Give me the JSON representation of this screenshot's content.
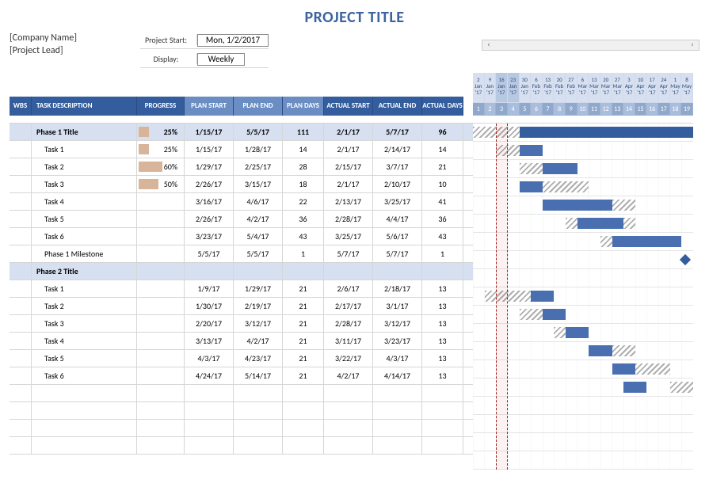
{
  "title": "PROJECT TITLE",
  "company": "[Company Name]",
  "lead": "[Project Lead]",
  "controls": {
    "start_label": "Project Start:",
    "start_value": "Mon, 1/2/2017",
    "display_label": "Display:",
    "display_value": "Weekly"
  },
  "columns": {
    "wbs": "WBS",
    "desc": "TASK DESCRIPTION",
    "prog": "PROGRESS",
    "ps": "PLAN START",
    "pe": "PLAN END",
    "pd": "PLAN DAYS",
    "as": "ACTUAL START",
    "ae": "ACTUAL END",
    "ad": "ACTUAL DAYS"
  },
  "timeline": {
    "dates": [
      {
        "d": "2",
        "m": "Jan",
        "y": "'17"
      },
      {
        "d": "9",
        "m": "Jan",
        "y": "'17"
      },
      {
        "d": "16",
        "m": "Jan",
        "y": "'17"
      },
      {
        "d": "23",
        "m": "Jan",
        "y": "'17"
      },
      {
        "d": "30",
        "m": "Jan",
        "y": "'17"
      },
      {
        "d": "6",
        "m": "Feb",
        "y": "'17"
      },
      {
        "d": "13",
        "m": "Feb",
        "y": "'17"
      },
      {
        "d": "20",
        "m": "Feb",
        "y": "'17"
      },
      {
        "d": "27",
        "m": "Feb",
        "y": "'17"
      },
      {
        "d": "6",
        "m": "Mar",
        "y": "'17"
      },
      {
        "d": "13",
        "m": "Mar",
        "y": "'17"
      },
      {
        "d": "20",
        "m": "Mar",
        "y": "'17"
      },
      {
        "d": "27",
        "m": "Mar",
        "y": "'17"
      },
      {
        "d": "3",
        "m": "Apr",
        "y": "'17"
      },
      {
        "d": "10",
        "m": "Apr",
        "y": "'17"
      },
      {
        "d": "17",
        "m": "Apr",
        "y": "'17"
      },
      {
        "d": "24",
        "m": "Apr",
        "y": "'17"
      },
      {
        "d": "1",
        "m": "May",
        "y": "'17"
      },
      {
        "d": "8",
        "m": "May",
        "y": "'17"
      }
    ],
    "weeks": [
      "1",
      "2",
      "3",
      "4",
      "5",
      "6",
      "7",
      "8",
      "9",
      "10",
      "11",
      "12",
      "13",
      "14",
      "15",
      "16",
      "17",
      "18",
      "19"
    ],
    "today_col": 3,
    "cell_w": 14.63,
    "colors": {
      "bar": "#4a6fb0",
      "phase_bar": "#345d9d"
    }
  },
  "rows": [
    {
      "type": "phase",
      "desc": "Phase 1 Title",
      "prog": 25,
      "ps": "1/15/17",
      "pe": "5/5/17",
      "pd": "111",
      "as": "2/1/17",
      "ae": "5/7/17",
      "ad": "96",
      "hatch": [
        0,
        4
      ],
      "bar": [
        4,
        19
      ],
      "dark": true
    },
    {
      "type": "task",
      "desc": "Task 1",
      "prog": 25,
      "ps": "1/15/17",
      "pe": "1/28/17",
      "pd": "14",
      "as": "2/1/17",
      "ae": "2/14/17",
      "ad": "14",
      "hatch": [
        2,
        4
      ],
      "bar": [
        4,
        6
      ]
    },
    {
      "type": "task",
      "desc": "Task 2",
      "prog": 60,
      "ps": "1/29/17",
      "pe": "2/25/17",
      "pd": "28",
      "as": "2/15/17",
      "ae": "3/7/17",
      "ad": "21",
      "hatch": [
        4,
        6
      ],
      "bar": [
        6,
        9
      ]
    },
    {
      "type": "task",
      "desc": "Task 3",
      "prog": 50,
      "ps": "2/26/17",
      "pe": "3/15/17",
      "pd": "18",
      "as": "2/1/17",
      "ae": "2/10/17",
      "ad": "10",
      "hatch": null,
      "bar": [
        4,
        6
      ],
      "posthatch": [
        6,
        10
      ]
    },
    {
      "type": "task",
      "desc": "Task 4",
      "prog": null,
      "ps": "3/16/17",
      "pe": "4/6/17",
      "pd": "22",
      "as": "2/13/17",
      "ae": "3/25/17",
      "ad": "41",
      "hatch": null,
      "bar": [
        6,
        12
      ],
      "posthatch": [
        12,
        14
      ]
    },
    {
      "type": "task",
      "desc": "Task 5",
      "prog": null,
      "ps": "2/26/17",
      "pe": "4/2/17",
      "pd": "36",
      "as": "2/28/17",
      "ae": "4/4/17",
      "ad": "36",
      "hatch": [
        8,
        9
      ],
      "bar": [
        9,
        13
      ],
      "posthatch": [
        13,
        14
      ]
    },
    {
      "type": "task",
      "desc": "Task 6",
      "prog": null,
      "ps": "3/23/17",
      "pe": "5/4/17",
      "pd": "43",
      "as": "3/25/17",
      "ae": "5/6/17",
      "ad": "43",
      "hatch": [
        11,
        12
      ],
      "bar": [
        12,
        18
      ]
    },
    {
      "type": "task",
      "desc": "Phase 1 Milestone",
      "prog": null,
      "ps": "5/5/17",
      "pe": "5/5/17",
      "pd": "1",
      "as": "5/7/17",
      "ae": "5/7/17",
      "ad": "1",
      "milestone": 18
    },
    {
      "type": "phase",
      "desc": "Phase 2 Title",
      "prog": null,
      "ps": "",
      "pe": "",
      "pd": "",
      "as": "",
      "ae": "",
      "ad": "",
      "no_gantt": true
    },
    {
      "type": "task",
      "desc": "Task 1",
      "prog": null,
      "ps": "1/9/17",
      "pe": "1/29/17",
      "pd": "21",
      "as": "2/6/17",
      "ae": "2/18/17",
      "ad": "13",
      "hatch": [
        1,
        5
      ],
      "bar": [
        5,
        7
      ]
    },
    {
      "type": "task",
      "desc": "Task 2",
      "prog": null,
      "ps": "1/30/17",
      "pe": "2/19/17",
      "pd": "21",
      "as": "2/17/17",
      "ae": "3/1/17",
      "ad": "13",
      "hatch": [
        4,
        6
      ],
      "bar": [
        6,
        8
      ]
    },
    {
      "type": "task",
      "desc": "Task 3",
      "prog": null,
      "ps": "2/20/17",
      "pe": "3/12/17",
      "pd": "21",
      "as": "2/28/17",
      "ae": "3/12/17",
      "ad": "13",
      "hatch": [
        7,
        8
      ],
      "bar": [
        8,
        10
      ]
    },
    {
      "type": "task",
      "desc": "Task 4",
      "prog": null,
      "ps": "3/13/17",
      "pe": "4/2/17",
      "pd": "21",
      "as": "3/11/17",
      "ae": "3/23/17",
      "ad": "13",
      "hatch": null,
      "bar": [
        10,
        12
      ],
      "posthatch": [
        12,
        14
      ]
    },
    {
      "type": "task",
      "desc": "Task 5",
      "prog": null,
      "ps": "4/3/17",
      "pe": "4/23/17",
      "pd": "21",
      "as": "3/22/17",
      "ae": "4/3/17",
      "ad": "13",
      "hatch": null,
      "bar": [
        12,
        14
      ],
      "posthatch": [
        14,
        17
      ]
    },
    {
      "type": "task",
      "desc": "Task 6",
      "prog": null,
      "ps": "4/24/17",
      "pe": "5/14/17",
      "pd": "21",
      "as": "4/2/17",
      "ae": "4/14/17",
      "ad": "13",
      "hatch": null,
      "bar": [
        13,
        15
      ],
      "posthatch": [
        17,
        19
      ]
    },
    {
      "type": "blank"
    },
    {
      "type": "blank"
    },
    {
      "type": "blank"
    },
    {
      "type": "blank"
    }
  ]
}
